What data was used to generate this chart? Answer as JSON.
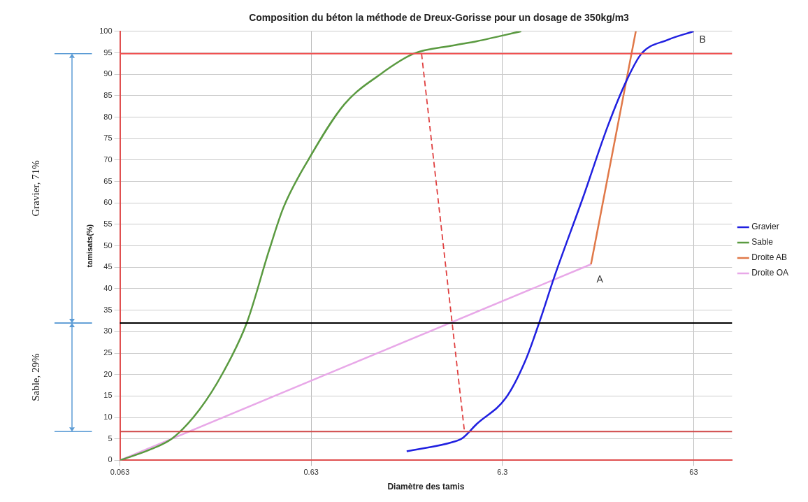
{
  "chart_data": {
    "type": "line",
    "title": "Composition du béton la méthode de Dreux-Gorisse pour un dosage de 350kg/m3",
    "xlabel": "Diamètre des tamis",
    "ylabel": "tamisats(%)",
    "series": [
      {
        "name": "Gravier",
        "color": "#2020e0",
        "x": [
          1.99,
          3.49,
          3.9,
          4.63,
          6.58,
          8.3,
          9.9,
          11.8,
          16.7,
          22.4,
          28.2,
          33.6,
          46,
          63
        ],
        "values": [
          2.1,
          4.3,
          5.2,
          8.5,
          14.6,
          23.2,
          32.6,
          42.9,
          61.5,
          77.9,
          88.7,
          94.8,
          98,
          100
        ]
      },
      {
        "name": "Sable",
        "color": "#5a9a40",
        "x": [
          0.063,
          0.0917,
          0.119,
          0.164,
          0.219,
          0.29,
          0.38,
          0.452,
          0.608,
          0.94,
          1.45,
          2.17,
          3.49,
          4.63,
          7.9
        ],
        "values": [
          0,
          2.6,
          5.2,
          11.8,
          20.6,
          32,
          49,
          59,
          70,
          83,
          90,
          94.8,
          96.7,
          97.7,
          100
        ]
      },
      {
        "name": "Droite AB",
        "color": "#e07848",
        "x": [
          18.3,
          31.4
        ],
        "values": [
          45.7,
          100
        ]
      },
      {
        "name": "Droite OA",
        "color": "#e8a8e8",
        "x": [
          0.063,
          18.3
        ],
        "values": [
          0,
          45.7
        ]
      },
      {
        "color": "#e04040",
        "line_style": "dashed",
        "x": [
          2.38,
          3.99
        ],
        "values": [
          94.8,
          6.7
        ]
      }
    ],
    "xlim": [
      0.063,
      100
    ],
    "xticks": [
      0.063,
      0.63,
      6.3,
      63
    ],
    "log": "x",
    "ylim": [
      0,
      100
    ],
    "yticks": [
      0,
      5,
      10,
      15,
      20,
      25,
      30,
      35,
      40,
      45,
      50,
      55,
      60,
      65,
      70,
      75,
      80,
      85,
      90,
      95,
      100
    ],
    "grid": true,
    "legend": "right",
    "marker": "none",
    "ref_lines": [
      {
        "axis": "y",
        "value": 94.8,
        "color": "#f05050"
      },
      {
        "axis": "y",
        "value": 6.7,
        "color": "#d04848"
      },
      {
        "axis": "y",
        "value": 32,
        "color": "#000000"
      }
    ],
    "annotations": [
      {
        "text": "A",
        "x": 18.3,
        "y": 45.7
      },
      {
        "text": "B",
        "x": 63,
        "y": 100
      },
      "Gravier, 71%",
      "Sable, 29%"
    ]
  }
}
